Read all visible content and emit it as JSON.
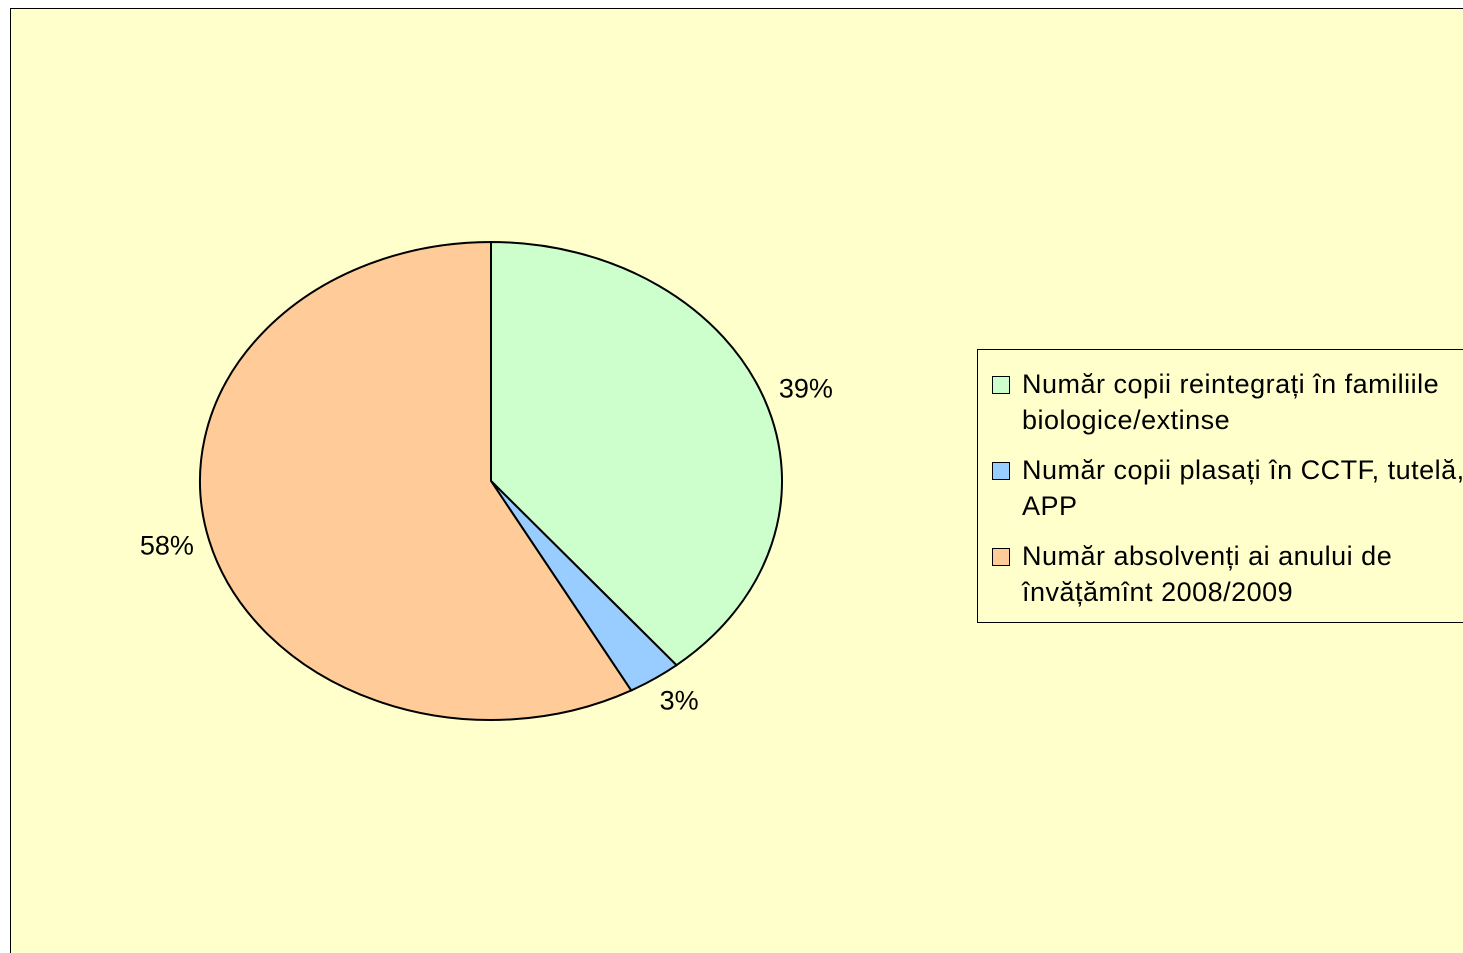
{
  "chart_data": {
    "type": "pie",
    "categories": [
      "Număr copii reintegrați în familiile biologice/extinse",
      "Număr copii plasați în CCTF, tutelă, APP",
      "Număr absolvenți ai anului de învățămînt 2008/2009"
    ],
    "values": [
      39,
      3,
      58
    ],
    "value_labels": [
      "39%",
      "3%",
      "58%"
    ],
    "colors": [
      "#ccffcc",
      "#99ccff",
      "#ffcc99"
    ],
    "legend": "right"
  }
}
